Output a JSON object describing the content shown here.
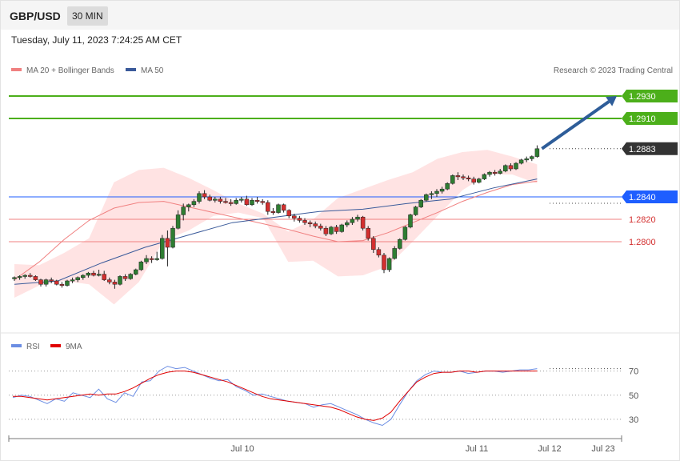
{
  "header": {
    "symbol": "GBP/USD",
    "timeframe": "30 MIN"
  },
  "datetime": "Tuesday, July 11, 2023 7:24:25 AM CET",
  "legend": {
    "bollinger": "MA 20 + Bollinger Bands",
    "ma50": "MA 50",
    "copyright": "Research © 2023 Trading Central",
    "rsi": "RSI",
    "rsi_ma": "9MA"
  },
  "colors": {
    "bullish": "#2e7d32",
    "bearish": "#d32f2f",
    "target": "#4caf1a",
    "pivot": "#1e5eff",
    "support": "#f08080",
    "current_tag": "#333333",
    "ma20": "#f08080",
    "ma50": "#3a5a9a",
    "band_fill": "#ffd9d9",
    "rsi": "#6b8de3",
    "rsi_ma": "#e00000",
    "arrow": "#2e5d99"
  },
  "chart_data": [
    {
      "type": "candlestick",
      "indicators": [
        "MA 20 + Bollinger Bands",
        "MA 50"
      ],
      "y_range": [
        1.2735,
        1.2945
      ],
      "x_labels": [
        "Jul 10",
        "Jul 11",
        "Jul 12",
        "Jul 23"
      ],
      "levels": [
        {
          "value": "1.2930",
          "kind": "target"
        },
        {
          "value": "1.2910",
          "kind": "target"
        },
        {
          "value": "1.2883",
          "kind": "current"
        },
        {
          "value": "1.2840",
          "kind": "pivot"
        },
        {
          "value": "1.2820",
          "kind": "support"
        },
        {
          "value": "1.2800",
          "kind": "support"
        }
      ],
      "candles": [
        [
          1.2767,
          1.2769,
          1.2765,
          1.2768
        ],
        [
          1.2768,
          1.277,
          1.2766,
          1.2769
        ],
        [
          1.2769,
          1.2771,
          1.2767,
          1.277
        ],
        [
          1.277,
          1.2772,
          1.2768,
          1.2769
        ],
        [
          1.2769,
          1.277,
          1.2765,
          1.2766
        ],
        [
          1.2766,
          1.2767,
          1.276,
          1.2762
        ],
        [
          1.2762,
          1.2767,
          1.276,
          1.2766
        ],
        [
          1.2766,
          1.2768,
          1.2763,
          1.2765
        ],
        [
          1.2765,
          1.2766,
          1.2761,
          1.2762
        ],
        [
          1.2762,
          1.2764,
          1.2759,
          1.2761
        ],
        [
          1.2761,
          1.2766,
          1.276,
          1.2765
        ],
        [
          1.2765,
          1.2768,
          1.2763,
          1.2766
        ],
        [
          1.2766,
          1.2769,
          1.2764,
          1.2768
        ],
        [
          1.2768,
          1.2771,
          1.2766,
          1.277
        ],
        [
          1.277,
          1.2773,
          1.2768,
          1.2772
        ],
        [
          1.2772,
          1.2774,
          1.2769,
          1.277
        ],
        [
          1.277,
          1.2775,
          1.2769,
          1.2771
        ],
        [
          1.2771,
          1.2774,
          1.2765,
          1.2766
        ],
        [
          1.2766,
          1.2768,
          1.2762,
          1.2764
        ],
        [
          1.2764,
          1.2766,
          1.2758,
          1.2762
        ],
        [
          1.2762,
          1.277,
          1.2761,
          1.2769
        ],
        [
          1.2769,
          1.2771,
          1.2765,
          1.2767
        ],
        [
          1.2767,
          1.2772,
          1.2766,
          1.2771
        ],
        [
          1.2771,
          1.2776,
          1.277,
          1.2775
        ],
        [
          1.2775,
          1.2783,
          1.2774,
          1.2782
        ],
        [
          1.2782,
          1.2788,
          1.278,
          1.2785
        ],
        [
          1.2785,
          1.2787,
          1.2781,
          1.2784
        ],
        [
          1.2784,
          1.2791,
          1.2783,
          1.2785
        ],
        [
          1.2785,
          1.2806,
          1.2784,
          1.2803
        ],
        [
          1.2803,
          1.281,
          1.2778,
          1.2795
        ],
        [
          1.2795,
          1.2814,
          1.2794,
          1.2812
        ],
        [
          1.2812,
          1.2828,
          1.2811,
          1.2824
        ],
        [
          1.2824,
          1.2834,
          1.2819,
          1.2831
        ],
        [
          1.2831,
          1.2834,
          1.2827,
          1.2833
        ],
        [
          1.2833,
          1.2838,
          1.2831,
          1.2836
        ],
        [
          1.2836,
          1.2845,
          1.2834,
          1.2843
        ],
        [
          1.2843,
          1.2846,
          1.2838,
          1.284
        ],
        [
          1.284,
          1.2842,
          1.2836,
          1.2837
        ],
        [
          1.2837,
          1.284,
          1.2835,
          1.2838
        ],
        [
          1.2838,
          1.284,
          1.2834,
          1.2836
        ],
        [
          1.2836,
          1.2839,
          1.2834,
          1.2835
        ],
        [
          1.2835,
          1.2838,
          1.2832,
          1.2834
        ],
        [
          1.2834,
          1.2839,
          1.2833,
          1.2837
        ],
        [
          1.2837,
          1.284,
          1.2835,
          1.2838
        ],
        [
          1.2838,
          1.2841,
          1.2832,
          1.2833
        ],
        [
          1.2833,
          1.2839,
          1.2832,
          1.2837
        ],
        [
          1.2837,
          1.284,
          1.2834,
          1.2836
        ],
        [
          1.2836,
          1.2838,
          1.2833,
          1.2835
        ],
        [
          1.2835,
          1.2837,
          1.2824,
          1.2827
        ],
        [
          1.2827,
          1.283,
          1.2824,
          1.2826
        ],
        [
          1.2826,
          1.2834,
          1.2825,
          1.2833
        ],
        [
          1.2833,
          1.2834,
          1.2826,
          1.2828
        ],
        [
          1.2828,
          1.2829,
          1.2821,
          1.2823
        ],
        [
          1.2823,
          1.2825,
          1.2818,
          1.2821
        ],
        [
          1.2821,
          1.2823,
          1.2817,
          1.2819
        ],
        [
          1.2819,
          1.2821,
          1.2815,
          1.2817
        ],
        [
          1.2817,
          1.2819,
          1.2813,
          1.2816
        ],
        [
          1.2816,
          1.2818,
          1.2812,
          1.2814
        ],
        [
          1.2814,
          1.2816,
          1.281,
          1.2812
        ],
        [
          1.2812,
          1.2814,
          1.2805,
          1.2807
        ],
        [
          1.2807,
          1.2814,
          1.2806,
          1.2813
        ],
        [
          1.2813,
          1.2815,
          1.2807,
          1.2809
        ],
        [
          1.2809,
          1.2816,
          1.2808,
          1.2815
        ],
        [
          1.2815,
          1.2819,
          1.2813,
          1.2817
        ],
        [
          1.2817,
          1.2822,
          1.2815,
          1.282
        ],
        [
          1.282,
          1.2824,
          1.2818,
          1.2822
        ],
        [
          1.2822,
          1.2823,
          1.281,
          1.2812
        ],
        [
          1.2812,
          1.2814,
          1.2801,
          1.2803
        ],
        [
          1.2803,
          1.2805,
          1.279,
          1.2793
        ],
        [
          1.2793,
          1.2795,
          1.2786,
          1.2788
        ],
        [
          1.2788,
          1.279,
          1.2772,
          1.2775
        ],
        [
          1.2775,
          1.2786,
          1.2773,
          1.2785
        ],
        [
          1.2785,
          1.2796,
          1.2784,
          1.2794
        ],
        [
          1.2794,
          1.2803,
          1.2793,
          1.2802
        ],
        [
          1.2802,
          1.2814,
          1.2801,
          1.2813
        ],
        [
          1.2813,
          1.2825,
          1.2812,
          1.2824
        ],
        [
          1.2824,
          1.2832,
          1.2823,
          1.2831
        ],
        [
          1.2831,
          1.2838,
          1.283,
          1.2837
        ],
        [
          1.2837,
          1.2843,
          1.2836,
          1.2842
        ],
        [
          1.2842,
          1.2845,
          1.2838,
          1.2843
        ],
        [
          1.2843,
          1.2847,
          1.284,
          1.2845
        ],
        [
          1.2845,
          1.2849,
          1.2843,
          1.2847
        ],
        [
          1.2847,
          1.2853,
          1.2846,
          1.2852
        ],
        [
          1.2852,
          1.286,
          1.2851,
          1.2859
        ],
        [
          1.2859,
          1.2862,
          1.2855,
          1.2858
        ],
        [
          1.2858,
          1.286,
          1.2855,
          1.2857
        ],
        [
          1.2857,
          1.2859,
          1.2854,
          1.2856
        ],
        [
          1.2856,
          1.2858,
          1.2851,
          1.2853
        ],
        [
          1.2853,
          1.2857,
          1.2852,
          1.2856
        ],
        [
          1.2856,
          1.2861,
          1.2855,
          1.286
        ],
        [
          1.286,
          1.2863,
          1.2858,
          1.2862
        ],
        [
          1.2862,
          1.2864,
          1.2859,
          1.2861
        ],
        [
          1.2861,
          1.2865,
          1.286,
          1.2863
        ],
        [
          1.2863,
          1.2869,
          1.2862,
          1.2868
        ],
        [
          1.2868,
          1.287,
          1.2863,
          1.2865
        ],
        [
          1.2865,
          1.2871,
          1.2864,
          1.287
        ],
        [
          1.287,
          1.2874,
          1.2869,
          1.2873
        ],
        [
          1.2873,
          1.2876,
          1.2871,
          1.2874
        ],
        [
          1.2874,
          1.2877,
          1.2872,
          1.2876
        ],
        [
          1.2876,
          1.2886,
          1.2875,
          1.2883
        ]
      ],
      "ma20": [
        [
          1.2766,
          1.2766
        ],
        [
          1.2782,
          1.2773
        ],
        [
          1.2802,
          1.279
        ],
        [
          1.2819,
          1.2816
        ],
        [
          1.283,
          1.2834
        ],
        [
          1.2835,
          1.2835
        ],
        [
          1.2836,
          1.283
        ],
        [
          1.2831,
          1.2824
        ],
        [
          1.2826,
          1.2818
        ],
        [
          1.2821,
          1.2813
        ],
        [
          1.2816,
          1.2806
        ],
        [
          1.2811,
          1.2798
        ],
        [
          1.2805,
          1.2788
        ],
        [
          1.28,
          1.2787
        ],
        [
          1.2801,
          1.279
        ],
        [
          1.2808,
          1.2797
        ],
        [
          1.2817,
          1.2808
        ],
        [
          1.2826,
          1.2817
        ],
        [
          1.2836,
          1.2826
        ],
        [
          1.2844,
          1.2838
        ],
        [
          1.2851,
          1.2846
        ],
        [
          1.2854,
          1.286
        ]
      ],
      "ma50": [
        [
          1.2762,
          1.2762
        ],
        [
          1.2765,
          1.2773
        ],
        [
          1.2781,
          1.2787
        ],
        [
          1.2795,
          1.28
        ],
        [
          1.2806,
          1.2812
        ],
        [
          1.2817,
          1.282
        ],
        [
          1.2822,
          1.2825
        ],
        [
          1.2827,
          1.2828
        ],
        [
          1.2829,
          1.2832
        ],
        [
          1.2834,
          1.2836
        ],
        [
          1.2838,
          1.2844
        ],
        [
          1.2848,
          1.2852
        ],
        [
          1.2856,
          1.2862
        ]
      ],
      "bands": [
        [
          1.278,
          1.275
        ],
        [
          1.2779,
          1.2761
        ],
        [
          1.279,
          1.2765
        ],
        [
          1.2803,
          1.2762
        ],
        [
          1.2853,
          1.2744
        ],
        [
          1.2864,
          1.2764
        ],
        [
          1.2866,
          1.2801
        ],
        [
          1.2857,
          1.281
        ],
        [
          1.2846,
          1.2823
        ],
        [
          1.2834,
          1.2826
        ],
        [
          1.2825,
          1.2821
        ],
        [
          1.2809,
          1.2782
        ],
        [
          1.282,
          1.2783
        ],
        [
          1.2839,
          1.2769
        ],
        [
          1.2847,
          1.277
        ],
        [
          1.2855,
          1.2778
        ],
        [
          1.2862,
          1.28
        ],
        [
          1.2874,
          1.2823
        ],
        [
          1.288,
          1.2846
        ],
        [
          1.2882,
          1.286
        ],
        [
          1.2876,
          1.286
        ],
        [
          1.2869,
          1.2852
        ]
      ]
    },
    {
      "type": "line",
      "y_ticks": [
        "70",
        "50",
        "30"
      ],
      "y_range": [
        20,
        85
      ],
      "series": [
        {
          "name": "RSI",
          "values": [
            48,
            50,
            49,
            46,
            43,
            47,
            45,
            52,
            50,
            48,
            55,
            47,
            44,
            52,
            49,
            61,
            62,
            70,
            74,
            72,
            73,
            70,
            67,
            64,
            62,
            63,
            57,
            54,
            50,
            51,
            49,
            47,
            45,
            44,
            43,
            40,
            42,
            43,
            40,
            37,
            34,
            30,
            27,
            25,
            30,
            42,
            53,
            62,
            67,
            70,
            69,
            69,
            70,
            68,
            69,
            70,
            70,
            69,
            70,
            71,
            71,
            72
          ]
        },
        {
          "name": "9MA",
          "values": [
            49,
            49,
            48,
            47,
            46,
            47,
            48,
            49,
            50,
            51,
            50,
            51,
            51,
            53,
            56,
            60,
            64,
            67,
            69,
            70,
            70,
            69,
            67,
            65,
            63,
            61,
            58,
            55,
            52,
            49,
            47,
            46,
            45,
            44,
            43,
            42,
            41,
            40,
            38,
            35,
            32,
            30,
            29,
            31,
            36,
            45,
            53,
            61,
            65,
            68,
            69,
            69,
            70,
            70,
            69,
            70,
            70,
            70,
            70,
            70,
            70,
            70
          ]
        }
      ]
    }
  ]
}
